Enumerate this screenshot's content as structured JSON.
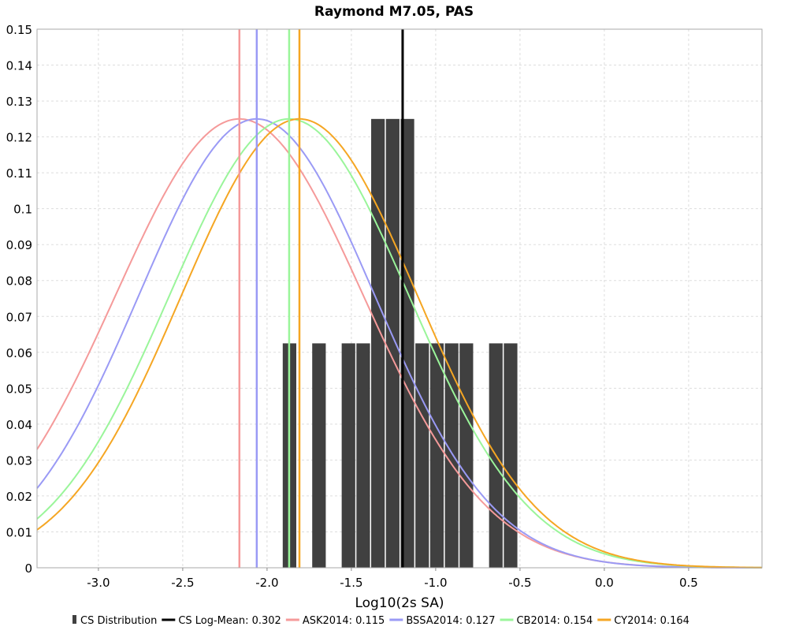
{
  "chart_data": {
    "type": "bar",
    "title": "Raymond M7.05, PAS",
    "xlabel": "Log10(2s SA)",
    "ylabel": "",
    "xlim": [
      -3.364,
      0.935
    ],
    "ylim": [
      0,
      0.15
    ],
    "grid": true,
    "legend_placement": "bottom",
    "x_ticks": [
      "-3.0",
      "-2.5",
      "-2.0",
      "-1.5",
      "-1.0",
      "-0.5",
      "0.0",
      "0.5"
    ],
    "x_tick_values": [
      -3.0,
      -2.5,
      -2.0,
      -1.5,
      -1.0,
      -0.5,
      0.0,
      0.5
    ],
    "y_ticks": [
      "0",
      "0.01",
      "0.02",
      "0.03",
      "0.04",
      "0.05",
      "0.06",
      "0.07",
      "0.08",
      "0.09",
      "0.1",
      "0.11",
      "0.12",
      "0.13",
      "0.14",
      "0.15"
    ],
    "y_tick_values": [
      0,
      0.01,
      0.02,
      0.03,
      0.04,
      0.05,
      0.06,
      0.07,
      0.08,
      0.09,
      0.1,
      0.11,
      0.12,
      0.13,
      0.14,
      0.15
    ],
    "histogram": {
      "name": "CS Distribution",
      "color": "#404040",
      "bin_start": -1.907,
      "bin_width": 0.0874,
      "bins": [
        {
          "index": 0,
          "value": 0.0625
        },
        {
          "index": 2,
          "value": 0.0625
        },
        {
          "index": 4,
          "value": 0.0625
        },
        {
          "index": 5,
          "value": 0.0625
        },
        {
          "index": 6,
          "value": 0.125
        },
        {
          "index": 7,
          "value": 0.125
        },
        {
          "index": 8,
          "value": 0.125
        },
        {
          "index": 9,
          "value": 0.0625
        },
        {
          "index": 10,
          "value": 0.0625
        },
        {
          "index": 11,
          "value": 0.0625
        },
        {
          "index": 12,
          "value": 0.0625
        },
        {
          "index": 14,
          "value": 0.0625
        },
        {
          "index": 15,
          "value": 0.0625
        }
      ]
    },
    "series": [
      {
        "name": "CS Log-Mean",
        "legend": "CS Log-Mean: 0.302",
        "color": "#000000",
        "mean": -1.196,
        "type": "vline"
      },
      {
        "name": "ASK2014",
        "legend": "ASK2014: 0.115",
        "color": "#f59a9a",
        "mean": -2.164,
        "sigma": 0.735,
        "peak": 0.125
      },
      {
        "name": "BSSA2014",
        "legend": "BSSA2014: 0.127",
        "color": "#9a9af5",
        "mean": -2.061,
        "sigma": 0.7,
        "peak": 0.125
      },
      {
        "name": "CB2014",
        "legend": "CB2014: 0.154",
        "color": "#9af59a",
        "mean": -1.869,
        "sigma": 0.71,
        "peak": 0.125
      },
      {
        "name": "CY2014",
        "legend": "CY2014: 0.164",
        "color": "#f5a623",
        "mean": -1.808,
        "sigma": 0.7,
        "peak": 0.125
      }
    ]
  }
}
